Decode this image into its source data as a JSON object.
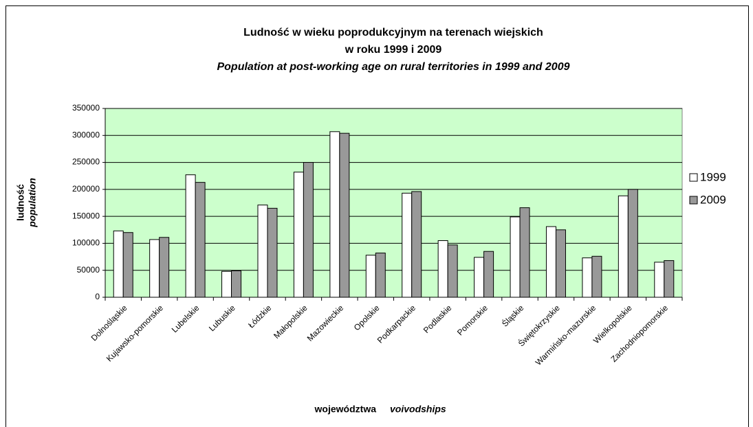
{
  "chart_data": {
    "type": "bar",
    "title_lines": [
      "Ludność w wieku poprodukcyjnym na terenach wiejskich",
      "w roku 1999 i 2009"
    ],
    "subtitle": "Population at post-working age on rural territories in 1999 and 2009",
    "y_label": "ludność",
    "y_label_en": "population",
    "x_label": "województwa",
    "x_label_en": "voivodships",
    "categories": [
      "Dolnośląskie",
      "Kujawsko-pomorskie",
      "Lubelskie",
      "Lubuskie",
      "Łódzkie",
      "Małopolskie",
      "Mazowieckie",
      "Opolskie",
      "Podkarpackie",
      "Podlaskie",
      "Pomorskie",
      "Śląskie",
      "Świętokrzyskie",
      "Warmińsko-mazurskie",
      "Wielkopolskie",
      "Zachodniopomorskie"
    ],
    "series": [
      {
        "name": "1999",
        "color": "#ffffff",
        "values": [
          123000,
          107000,
          227000,
          48000,
          171000,
          232000,
          307000,
          78000,
          193000,
          105000,
          74000,
          149000,
          131000,
          73000,
          188000,
          65000
        ]
      },
      {
        "name": "2009",
        "color": "#999999",
        "values": [
          120000,
          111000,
          213000,
          49000,
          165000,
          250000,
          304000,
          82000,
          196000,
          97000,
          85000,
          166000,
          125000,
          76000,
          200000,
          68000
        ]
      }
    ],
    "ylim": [
      0,
      350000
    ],
    "yticks": [
      0,
      50000,
      100000,
      150000,
      200000,
      250000,
      300000,
      350000
    ],
    "grid": true,
    "plot_background": "#ccffcc",
    "legend": "right"
  }
}
